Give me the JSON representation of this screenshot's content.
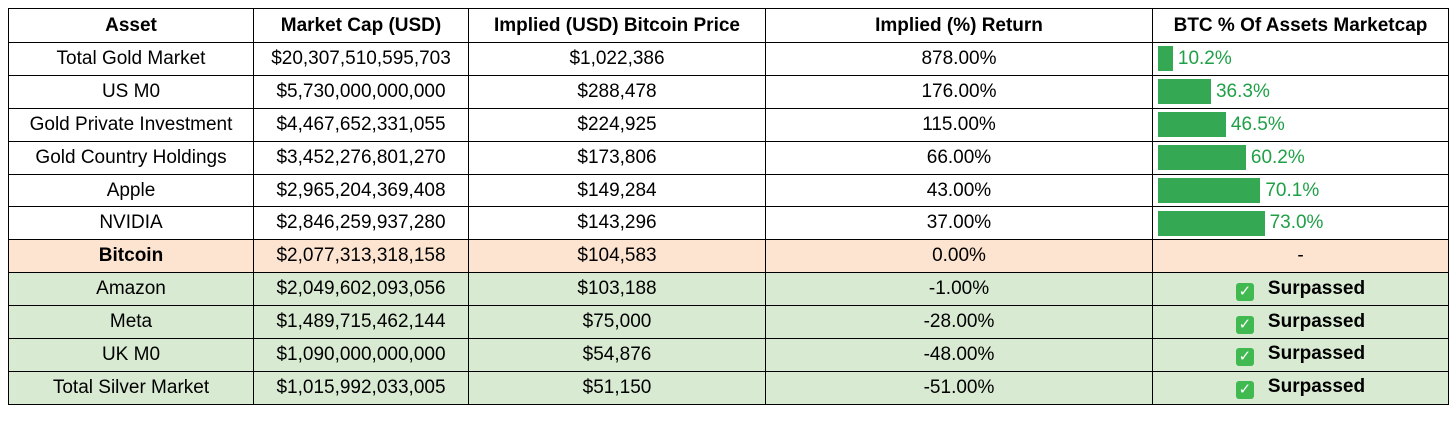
{
  "headers": {
    "asset": "Asset",
    "market_cap": "Market Cap (USD)",
    "implied_price": "Implied (USD) Bitcoin Price",
    "implied_return": "Implied (%) Return",
    "btc_pct": "BTC % Of Assets Marketcap"
  },
  "colors": {
    "bar": "#34a853",
    "bar_label": "#1fa047",
    "bitcoin_row": "#fce4d0",
    "surpassed_row": "#d9ead3",
    "check": "#3fb950"
  },
  "rows": [
    {
      "asset": "Total Gold Market",
      "market_cap": "$20,307,510,595,703",
      "implied_price": "$1,022,386",
      "implied_return": "878.00%",
      "btc_pct_label": "10.2%",
      "btc_pct_value": 10.2,
      "status": "bar"
    },
    {
      "asset": "US M0",
      "market_cap": "$5,730,000,000,000",
      "implied_price": "$288,478",
      "implied_return": "176.00%",
      "btc_pct_label": "36.3%",
      "btc_pct_value": 36.3,
      "status": "bar"
    },
    {
      "asset": "Gold Private Investment",
      "market_cap": "$4,467,652,331,055",
      "implied_price": "$224,925",
      "implied_return": "115.00%",
      "btc_pct_label": "46.5%",
      "btc_pct_value": 46.5,
      "status": "bar"
    },
    {
      "asset": "Gold Country Holdings",
      "market_cap": "$3,452,276,801,270",
      "implied_price": "$173,806",
      "implied_return": "66.00%",
      "btc_pct_label": "60.2%",
      "btc_pct_value": 60.2,
      "status": "bar"
    },
    {
      "asset": "Apple",
      "market_cap": "$2,965,204,369,408",
      "implied_price": "$149,284",
      "implied_return": "43.00%",
      "btc_pct_label": "70.1%",
      "btc_pct_value": 70.1,
      "status": "bar"
    },
    {
      "asset": "NVIDIA",
      "market_cap": "$2,846,259,937,280",
      "implied_price": "$143,296",
      "implied_return": "37.00%",
      "btc_pct_label": "73.0%",
      "btc_pct_value": 73.0,
      "status": "bar"
    },
    {
      "asset": "Bitcoin",
      "market_cap": "$2,077,313,318,158",
      "implied_price": "$104,583",
      "implied_return": "0.00%",
      "btc_pct_label": "-",
      "status": "self"
    },
    {
      "asset": "Amazon",
      "market_cap": "$2,049,602,093,056",
      "implied_price": "$103,188",
      "implied_return": "-1.00%",
      "btc_pct_label": "Surpassed",
      "status": "surpassed"
    },
    {
      "asset": "Meta",
      "market_cap": "$1,489,715,462,144",
      "implied_price": "$75,000",
      "implied_return": "-28.00%",
      "btc_pct_label": "Surpassed",
      "status": "surpassed"
    },
    {
      "asset": "UK M0",
      "market_cap": "$1,090,000,000,000",
      "implied_price": "$54,876",
      "implied_return": "-48.00%",
      "btc_pct_label": "Surpassed",
      "status": "surpassed"
    },
    {
      "asset": "Total Silver Market",
      "market_cap": "$1,015,992,033,005",
      "implied_price": "$51,150",
      "implied_return": "-51.00%",
      "btc_pct_label": "Surpassed",
      "status": "surpassed"
    }
  ],
  "icons": {
    "surpassed": "check-mark-icon"
  }
}
